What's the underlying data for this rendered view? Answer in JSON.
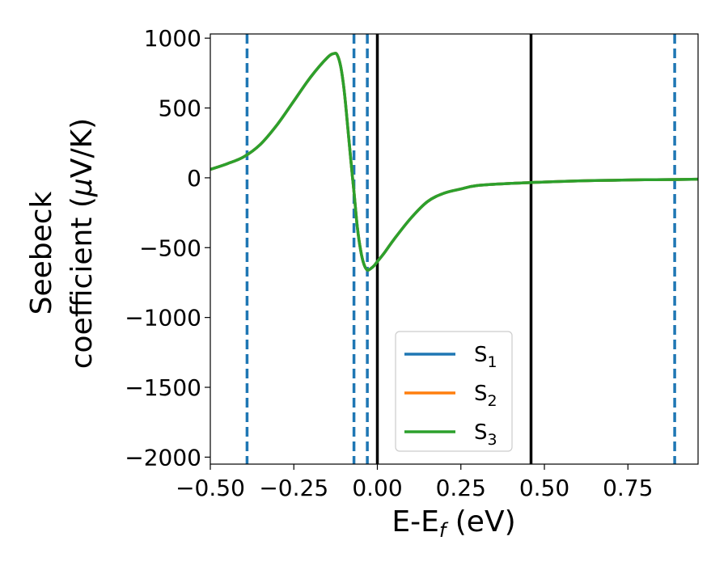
{
  "chart_data": {
    "type": "line",
    "title": "",
    "xlabel": "E-E",
    "xlabel_sub": "f",
    "xlabel_unit": " (eV)",
    "ylabel_line1": "Seebeck",
    "ylabel_line2": "coefficient  (",
    "ylabel_mu": "μ",
    "ylabel_unit": "V/K)",
    "xlim": [
      -0.5,
      0.96
    ],
    "ylim": [
      -2050,
      1030
    ],
    "x_ticks": [
      -0.5,
      -0.25,
      0.0,
      0.25,
      0.5,
      0.75
    ],
    "x_tick_labels": [
      "−0.50",
      "−0.25",
      "0.00",
      "0.25",
      "0.50",
      "0.75"
    ],
    "y_ticks": [
      1000,
      500,
      0,
      -500,
      -1000,
      -1500,
      -2000
    ],
    "y_tick_labels": [
      "1000",
      "500",
      "0",
      "−500",
      "−1000",
      "−1500",
      "−2000"
    ],
    "grid": false,
    "legend_position": "lower-center",
    "series": [
      {
        "name": "S",
        "sub": "1",
        "color": "#1f77b4",
        "x": [
          -0.5,
          -0.45,
          -0.4,
          -0.35,
          -0.3,
          -0.25,
          -0.2,
          -0.15,
          -0.13,
          -0.12,
          -0.11,
          -0.1,
          -0.09,
          -0.08,
          -0.07,
          -0.06,
          -0.05,
          -0.04,
          -0.03,
          -0.02,
          -0.01,
          0.0,
          0.02,
          0.05,
          0.1,
          0.15,
          0.2,
          0.25,
          0.3,
          0.4,
          0.5,
          0.6,
          0.7,
          0.8,
          0.9,
          0.96
        ],
        "y": [
          60,
          100,
          150,
          240,
          380,
          550,
          720,
          860,
          890,
          880,
          800,
          640,
          400,
          140,
          -100,
          -350,
          -520,
          -620,
          -660,
          -650,
          -630,
          -600,
          -540,
          -440,
          -290,
          -170,
          -110,
          -80,
          -55,
          -40,
          -30,
          -22,
          -18,
          -14,
          -12,
          -10
        ]
      },
      {
        "name": "S",
        "sub": "2",
        "color": "#ff7f0e",
        "x": [
          -0.5,
          -0.45,
          -0.4,
          -0.35,
          -0.3,
          -0.25,
          -0.2,
          -0.15,
          -0.13,
          -0.12,
          -0.11,
          -0.1,
          -0.09,
          -0.08,
          -0.07,
          -0.06,
          -0.05,
          -0.04,
          -0.03,
          -0.02,
          -0.01,
          0.0,
          0.02,
          0.05,
          0.1,
          0.15,
          0.2,
          0.25,
          0.3,
          0.4,
          0.5,
          0.6,
          0.7,
          0.8,
          0.9,
          0.96
        ],
        "y": [
          60,
          100,
          150,
          240,
          380,
          550,
          720,
          860,
          890,
          880,
          800,
          640,
          400,
          140,
          -100,
          -350,
          -520,
          -620,
          -660,
          -650,
          -630,
          -600,
          -540,
          -440,
          -290,
          -170,
          -110,
          -80,
          -55,
          -40,
          -30,
          -22,
          -18,
          -14,
          -12,
          -10
        ]
      },
      {
        "name": "S",
        "sub": "3",
        "color": "#2ca02c",
        "x": [
          -0.5,
          -0.45,
          -0.4,
          -0.35,
          -0.3,
          -0.25,
          -0.2,
          -0.15,
          -0.13,
          -0.12,
          -0.11,
          -0.1,
          -0.09,
          -0.08,
          -0.07,
          -0.06,
          -0.05,
          -0.04,
          -0.03,
          -0.02,
          -0.01,
          0.0,
          0.02,
          0.05,
          0.1,
          0.15,
          0.2,
          0.25,
          0.3,
          0.4,
          0.5,
          0.6,
          0.7,
          0.8,
          0.9,
          0.96
        ],
        "y": [
          60,
          100,
          150,
          240,
          380,
          550,
          720,
          860,
          890,
          880,
          800,
          640,
          400,
          140,
          -100,
          -350,
          -520,
          -620,
          -660,
          -650,
          -630,
          -600,
          -540,
          -440,
          -290,
          -170,
          -110,
          -80,
          -55,
          -40,
          -30,
          -22,
          -18,
          -14,
          -12,
          -10
        ]
      }
    ],
    "vlines_dashed": {
      "color": "#1f77b4",
      "x": [
        -0.39,
        -0.07,
        -0.03,
        0.89
      ]
    },
    "vlines_solid": {
      "color": "#000000",
      "x": [
        0.0,
        0.46
      ]
    }
  }
}
